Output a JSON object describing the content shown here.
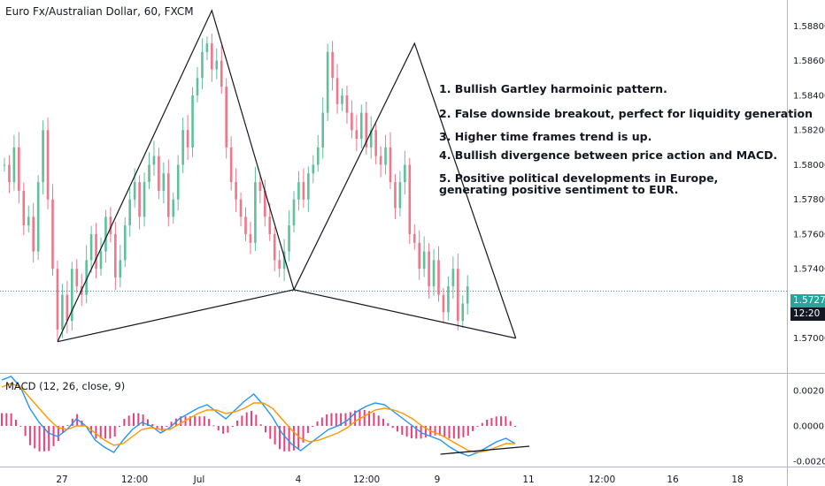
{
  "symbol_title": "Euro Fx/Australian Dollar, 60, FXCM",
  "notes": [
    "1. Bullish Gartley harmoinic pattern.",
    "2. False downside breakout, perfect for liquidity generation",
    "3. Higher time frames trend is up.",
    "4. Bullish divergence between price action and MACD.",
    "5. Positive political developments in Europe, generating positive sentiment to EUR."
  ],
  "macd_title": "MACD (12, 26, close, 9)",
  "current_price_label": "1.57271",
  "countdown_label": "12:20",
  "colors": {
    "up": "#5fc09a",
    "down": "#f0768a",
    "wick_bg": "#e6f0f0",
    "line": "#131722",
    "macd": "#2196f3",
    "signal": "#ff9800",
    "hist": "#e91e63",
    "current": "#26a69a"
  },
  "chart_data": [
    {
      "type": "candlestick",
      "title": "Euro Fx/Australian Dollar, 60, FXCM",
      "x_tick_labels": [
        "27",
        "12:00",
        "Jul",
        "4",
        "12:00",
        "9",
        "11",
        "12:00",
        "16",
        "18"
      ],
      "y_tick_labels": [
        "1.58800",
        "1.58600",
        "1.58400",
        "1.58200",
        "1.58000",
        "1.57800",
        "1.57600",
        "1.57400",
        "1.57271",
        "1.57000"
      ],
      "ylim": [
        1.568,
        1.5895
      ],
      "grid": false,
      "series": [
        {
          "name": "price",
          "values": [
            1.58,
            1.579,
            1.581,
            1.5785,
            1.5765,
            1.577,
            1.575,
            1.579,
            1.582,
            1.578,
            1.574,
            1.5705,
            1.5725,
            1.571,
            1.574,
            1.573,
            1.5725,
            1.5745,
            1.576,
            1.574,
            1.575,
            1.577,
            1.576,
            1.5735,
            1.5745,
            1.5765,
            1.578,
            1.579,
            1.577,
            1.579,
            1.58,
            1.5805,
            1.5785,
            1.5795,
            1.577,
            1.578,
            1.58,
            1.582,
            1.581,
            1.584,
            1.585,
            1.5865,
            1.587,
            1.5855,
            1.586,
            1.5845,
            1.581,
            1.579,
            1.578,
            1.577,
            1.576,
            1.5755,
            1.579,
            1.5785,
            1.577,
            1.576,
            1.5745,
            1.574,
            1.575,
            1.5765,
            1.578,
            1.579,
            1.578,
            1.5795,
            1.58,
            1.581,
            1.583,
            1.5865,
            1.585,
            1.5835,
            1.584,
            1.583,
            1.582,
            1.5815,
            1.583,
            1.581,
            1.582,
            1.5805,
            1.58,
            1.581,
            1.579,
            1.5775,
            1.579,
            1.58,
            1.576,
            1.5755,
            1.574,
            1.575,
            1.573,
            1.5745,
            1.5725,
            1.5715,
            1.573,
            1.574,
            1.571,
            1.572,
            1.573
          ]
        }
      ],
      "annotations": {
        "harmonic_pattern_points": [
          {
            "index": 11,
            "price": 1.5698
          },
          {
            "index": 43,
            "price": 1.5889
          },
          {
            "index": 60,
            "price": 1.5728
          },
          {
            "index": 85,
            "price": 1.587
          },
          {
            "index": 106,
            "price": 1.57
          }
        ]
      }
    },
    {
      "type": "line",
      "title": "MACD (12, 26, close, 9)",
      "y_tick_labels": [
        "0.0020",
        "0.0000",
        "-0.0020"
      ],
      "ylim": [
        -0.0023,
        0.0029
      ],
      "series": [
        {
          "name": "MACD",
          "values": [
            0.0026,
            0.0028,
            0.0022,
            0.001,
            0.0002,
            -0.0004,
            -0.0006,
            -0.0002,
            0.0004,
            0.0,
            -0.0008,
            -0.0012,
            -0.0015,
            -0.0008,
            -0.0002,
            0.0002,
            0.0,
            -0.0004,
            -0.0001,
            0.0004,
            0.0007,
            0.001,
            0.0012,
            0.0008,
            0.0004,
            0.0009,
            0.0014,
            0.0018,
            0.0012,
            0.0005,
            -0.0004,
            -0.001,
            -0.0014,
            -0.001,
            -0.0006,
            -0.0002,
            0.0,
            0.0003,
            0.0008,
            0.0011,
            0.0013,
            0.0012,
            0.0008,
            0.0004,
            0.0,
            -0.0004,
            -0.0006,
            -0.0008,
            -0.0012,
            -0.0015,
            -0.0017,
            -0.0015,
            -0.0012,
            -0.0009,
            -0.0007,
            -0.001
          ]
        },
        {
          "name": "Signal",
          "values": [
            0.0022,
            0.0024,
            0.0022,
            0.0016,
            0.001,
            0.0004,
            -0.0001,
            -0.0002,
            0.0,
            0.0,
            -0.0004,
            -0.0008,
            -0.0011,
            -0.001,
            -0.0006,
            -0.0002,
            -0.0001,
            -0.0002,
            -0.0002,
            0.0001,
            0.0004,
            0.0007,
            0.0009,
            0.0009,
            0.0007,
            0.0008,
            0.001,
            0.0013,
            0.0013,
            0.001,
            0.0004,
            -0.0002,
            -0.0007,
            -0.0009,
            -0.0008,
            -0.0006,
            -0.0004,
            -0.0001,
            0.0003,
            0.0006,
            0.0009,
            0.001,
            0.0009,
            0.0007,
            0.0004,
            0.0,
            -0.0003,
            -0.0005,
            -0.0008,
            -0.0011,
            -0.0014,
            -0.0015,
            -0.0014,
            -0.0012,
            -0.001,
            -0.001
          ]
        }
      ],
      "divergence_line": [
        {
          "x_index": 47,
          "value": -0.0016
        },
        {
          "x_index": 55,
          "value": -0.0009
        }
      ]
    }
  ]
}
